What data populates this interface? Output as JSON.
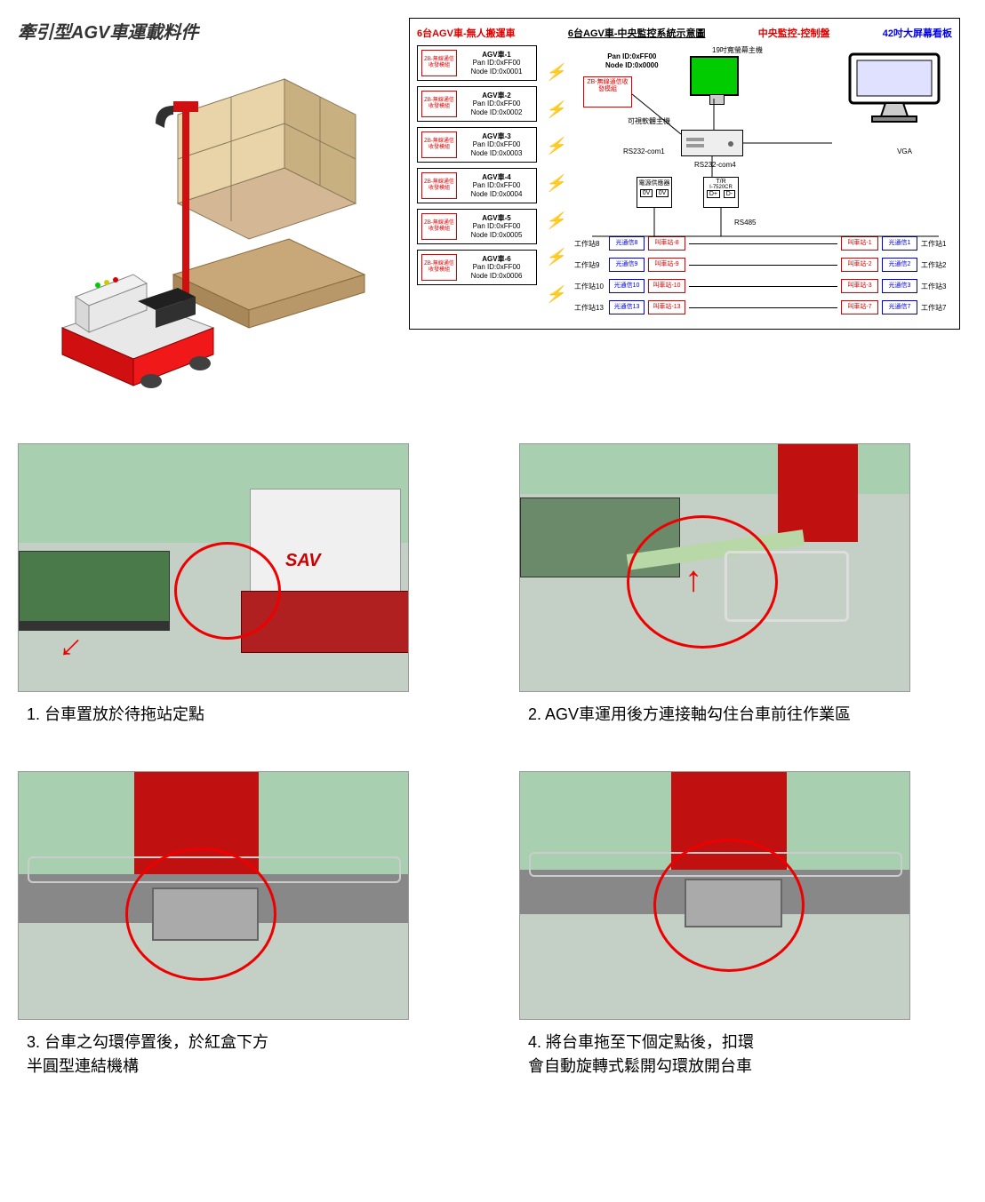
{
  "top_left": {
    "title": "牽引型AGV車運載料件"
  },
  "diagram": {
    "title_red_left": "6台AGV車-無人搬運車",
    "title_center": "6台AGV車-中央監控系統示意圖",
    "title_red_right": "中央監控-控制盤",
    "title_blue_right": "42吋大屏幕看板",
    "zb_module_text": "ZB-無線通信收發模組",
    "agv_units": [
      {
        "name": "AGV車-1",
        "pan": "Pan ID:0xFF00",
        "node": "Node ID:0x0001"
      },
      {
        "name": "AGV車-2",
        "pan": "Pan ID:0xFF00",
        "node": "Node ID:0x0002"
      },
      {
        "name": "AGV車-3",
        "pan": "Pan ID:0xFF00",
        "node": "Node ID:0x0003"
      },
      {
        "name": "AGV車-4",
        "pan": "Pan ID:0xFF00",
        "node": "Node ID:0x0004"
      },
      {
        "name": "AGV車-5",
        "pan": "Pan ID:0xFF00",
        "node": "Node ID:0x0005"
      },
      {
        "name": "AGV車-6",
        "pan": "Pan ID:0xFF00",
        "node": "Node ID:0x0006"
      }
    ],
    "center": {
      "pan_node": "Pan ID:0xFF00\nNode ID:0x0000",
      "host_label": "19吋寬螢幕主機",
      "zb_center": "ZB-無線通信收發模組",
      "pc_label": "可視軟體主機",
      "rs232_1": "RS232-com1",
      "rs232_4": "RS232-com4",
      "vga": "VGA",
      "conv1_top": "電源供應器",
      "conv1_bot": "0V 0V",
      "conv2_top": "T/R",
      "conv2_mid": "I-7520CR",
      "conv2_bot": "D+ D-",
      "rs485": "RS485"
    },
    "stations": [
      {
        "left_ws": "工作站8",
        "left_light": "光通信8",
        "left_stop": "叫車站-8",
        "right_stop": "叫車站-1",
        "right_light": "光通信1",
        "right_ws": "工作站1"
      },
      {
        "left_ws": "工作站9",
        "left_light": "光通信9",
        "left_stop": "叫車站-9",
        "right_stop": "叫車站-2",
        "right_light": "光通信2",
        "right_ws": "工作站2"
      },
      {
        "left_ws": "工作站10",
        "left_light": "光通信10",
        "left_stop": "叫車站-10",
        "right_stop": "叫車站-3",
        "right_light": "光通信3",
        "right_ws": "工作站3"
      },
      {
        "left_ws": "工作站13",
        "left_light": "光通信13",
        "left_stop": "叫車站-13",
        "right_stop": "叫車站-7",
        "right_light": "光通信7",
        "right_ws": "工作站7"
      }
    ]
  },
  "photos": {
    "p1": {
      "caption": "1. 台車置放於待拖站定點",
      "agv_label": "SAV"
    },
    "p2": {
      "caption": "2. AGV車運用後方連接軸勾住台車前往作業區"
    },
    "p3": {
      "caption": "3. 台車之勾環停置後，於紅盒下方\n半圓型連結機構"
    },
    "p4": {
      "caption": "4. 將台車拖至下個定點後，扣環\n會自動旋轉式鬆開勾環放開台車"
    }
  },
  "colors": {
    "red": "#d00000",
    "blue": "#0000d0",
    "green_screen": "#00cc00",
    "floor": "#c4cfc5",
    "cart_green": "#4a7a4a",
    "agv_red": "#b02020",
    "circle": "#e00000"
  }
}
